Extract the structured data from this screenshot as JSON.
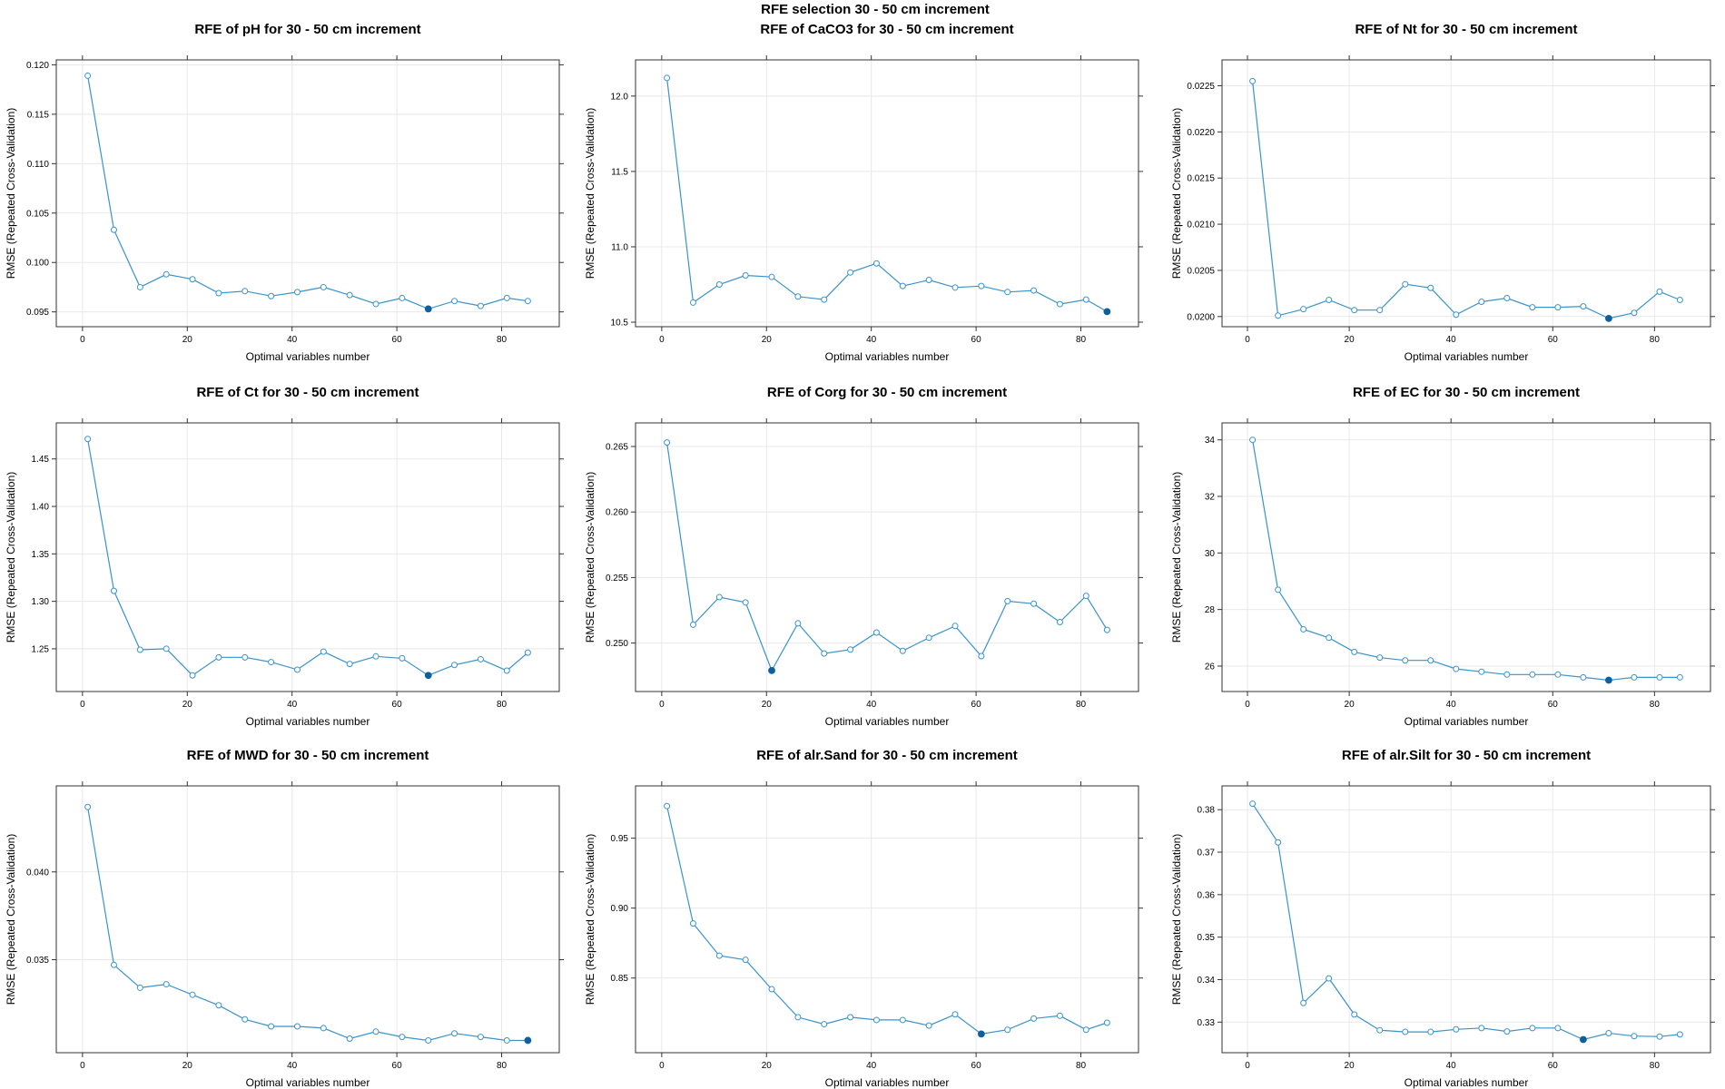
{
  "figure_title": "RFE selection 30 - 50 cm increment",
  "colors": {
    "line": "#3a93c9",
    "point_fill": "#ffffff",
    "best_point": "#0f5f9c",
    "grid": "#e8e8e8",
    "frame": "#333333"
  },
  "chart_data": [
    {
      "type": "line",
      "title": "RFE of pH for 30 - 50 cm increment",
      "xlabel": "Optimal variables number",
      "ylabel": "RMSE (Repeated Cross-Validation)",
      "xlim": [
        -5,
        91
      ],
      "ylim": [
        0.0935,
        0.1205
      ],
      "x_ticks": [
        0,
        20,
        40,
        60,
        80
      ],
      "y_ticks": [
        0.095,
        0.1,
        0.105,
        0.11,
        0.115,
        0.12
      ],
      "y_tick_labels": [
        "0.095",
        "0.100",
        "0.105",
        "0.110",
        "0.115",
        "0.120"
      ],
      "grid": true,
      "x": [
        1,
        6,
        11,
        16,
        21,
        26,
        31,
        36,
        41,
        46,
        51,
        56,
        61,
        66,
        71,
        76,
        81,
        85
      ],
      "values": [
        0.1189,
        0.1033,
        0.0975,
        0.0988,
        0.0983,
        0.0969,
        0.0971,
        0.0966,
        0.097,
        0.0975,
        0.0967,
        0.0958,
        0.0964,
        0.0953,
        0.0961,
        0.0956,
        0.0964,
        0.0961
      ],
      "best_index": 13
    },
    {
      "type": "line",
      "title": "RFE of CaCO3 for 30 - 50 cm increment",
      "xlabel": "Optimal variables number",
      "ylabel": "RMSE (Repeated Cross-Validation)",
      "xlim": [
        -5,
        91
      ],
      "ylim": [
        10.47,
        12.24
      ],
      "x_ticks": [
        0,
        20,
        40,
        60,
        80
      ],
      "y_ticks": [
        10.5,
        11.0,
        11.5,
        12.0
      ],
      "y_tick_labels": [
        "10.5",
        "11.0",
        "11.5",
        "12.0"
      ],
      "grid": true,
      "x": [
        1,
        6,
        11,
        16,
        21,
        26,
        31,
        36,
        41,
        46,
        51,
        56,
        61,
        66,
        71,
        76,
        81,
        85
      ],
      "values": [
        12.12,
        10.63,
        10.75,
        10.81,
        10.8,
        10.67,
        10.65,
        10.83,
        10.89,
        10.74,
        10.78,
        10.73,
        10.74,
        10.7,
        10.71,
        10.62,
        10.65,
        10.57
      ],
      "best_index": 17
    },
    {
      "type": "line",
      "title": "RFE of Nt for 30 - 50 cm increment",
      "xlabel": "Optimal variables number",
      "ylabel": "RMSE (Repeated Cross-Validation)",
      "xlim": [
        -5,
        91
      ],
      "ylim": [
        0.01989,
        0.02278
      ],
      "x_ticks": [
        0,
        20,
        40,
        60,
        80
      ],
      "y_ticks": [
        0.02,
        0.0205,
        0.021,
        0.0215,
        0.022,
        0.0225
      ],
      "y_tick_labels": [
        "0.0200",
        "0.0205",
        "0.0210",
        "0.0215",
        "0.0220",
        "0.0225"
      ],
      "grid": true,
      "x": [
        1,
        6,
        11,
        16,
        21,
        26,
        31,
        36,
        41,
        46,
        51,
        56,
        61,
        66,
        71,
        76,
        81,
        85
      ],
      "values": [
        0.02255,
        0.02001,
        0.02008,
        0.02018,
        0.02007,
        0.02007,
        0.02035,
        0.02031,
        0.02002,
        0.02016,
        0.0202,
        0.0201,
        0.0201,
        0.02011,
        0.01998,
        0.02004,
        0.02027,
        0.02018
      ],
      "best_index": 14
    },
    {
      "type": "line",
      "title": "RFE of Ct for 30 - 50 cm increment",
      "xlabel": "Optimal variables number",
      "ylabel": "RMSE (Repeated Cross-Validation)",
      "xlim": [
        -5,
        91
      ],
      "ylim": [
        1.205,
        1.488
      ],
      "x_ticks": [
        0,
        20,
        40,
        60,
        80
      ],
      "y_ticks": [
        1.25,
        1.3,
        1.35,
        1.4,
        1.45
      ],
      "y_tick_labels": [
        "1.25",
        "1.30",
        "1.35",
        "1.40",
        "1.45"
      ],
      "grid": true,
      "x": [
        1,
        6,
        11,
        16,
        21,
        26,
        31,
        36,
        41,
        46,
        51,
        56,
        61,
        66,
        71,
        76,
        81,
        85
      ],
      "values": [
        1.471,
        1.311,
        1.249,
        1.25,
        1.222,
        1.241,
        1.241,
        1.236,
        1.228,
        1.247,
        1.234,
        1.242,
        1.24,
        1.222,
        1.233,
        1.239,
        1.227,
        1.246
      ],
      "best_index": 13
    },
    {
      "type": "line",
      "title": "RFE of Corg for 30 - 50 cm increment",
      "xlabel": "Optimal variables number",
      "ylabel": "RMSE (Repeated Cross-Validation)",
      "xlim": [
        -5,
        91
      ],
      "ylim": [
        0.2463,
        0.2668
      ],
      "x_ticks": [
        0,
        20,
        40,
        60,
        80
      ],
      "y_ticks": [
        0.25,
        0.255,
        0.26,
        0.265
      ],
      "y_tick_labels": [
        "0.250",
        "0.255",
        "0.260",
        "0.265"
      ],
      "grid": true,
      "x": [
        1,
        6,
        11,
        16,
        21,
        26,
        31,
        36,
        41,
        46,
        51,
        56,
        61,
        66,
        71,
        76,
        81,
        85
      ],
      "values": [
        0.2653,
        0.2514,
        0.2535,
        0.2531,
        0.2479,
        0.2515,
        0.2492,
        0.2495,
        0.2508,
        0.2494,
        0.2504,
        0.2513,
        0.249,
        0.2532,
        0.253,
        0.2516,
        0.2536,
        0.251
      ],
      "best_index": 4
    },
    {
      "type": "line",
      "title": "RFE of EC for 30 - 50 cm increment",
      "xlabel": "Optimal variables number",
      "ylabel": "RMSE (Repeated Cross-Validation)",
      "xlim": [
        -5,
        91
      ],
      "ylim": [
        25.1,
        34.6
      ],
      "x_ticks": [
        0,
        20,
        40,
        60,
        80
      ],
      "y_ticks": [
        26,
        28,
        30,
        32,
        34
      ],
      "y_tick_labels": [
        "26",
        "28",
        "30",
        "32",
        "34"
      ],
      "grid": true,
      "x": [
        1,
        6,
        11,
        16,
        21,
        26,
        31,
        36,
        41,
        46,
        51,
        56,
        61,
        66,
        71,
        76,
        81,
        85
      ],
      "values": [
        34.0,
        28.7,
        27.3,
        27.0,
        26.5,
        26.3,
        26.2,
        26.2,
        25.9,
        25.8,
        25.7,
        25.7,
        25.7,
        25.6,
        25.5,
        25.6,
        25.6,
        25.6
      ],
      "best_index": 14
    },
    {
      "type": "line",
      "title": "RFE of MWD for 30 - 50 cm increment",
      "xlabel": "Optimal variables number",
      "ylabel": "RMSE (Repeated Cross-Validation)",
      "xlim": [
        -5,
        91
      ],
      "ylim": [
        0.0297,
        0.0449
      ],
      "x_ticks": [
        0,
        20,
        40,
        60,
        80
      ],
      "y_ticks": [
        0.035,
        0.04
      ],
      "y_tick_labels": [
        "0.035",
        "0.040"
      ],
      "grid": true,
      "x": [
        1,
        6,
        11,
        16,
        21,
        26,
        31,
        36,
        41,
        46,
        51,
        56,
        61,
        66,
        71,
        76,
        81,
        85
      ],
      "values": [
        0.0437,
        0.0347,
        0.0334,
        0.0336,
        0.033,
        0.0324,
        0.0316,
        0.0312,
        0.0312,
        0.0311,
        0.0305,
        0.0309,
        0.0306,
        0.0304,
        0.0308,
        0.0306,
        0.0304,
        0.0304
      ],
      "best_index": 17
    },
    {
      "type": "line",
      "title": "RFE of alr.Sand for 30 - 50 cm increment",
      "xlabel": "Optimal variables number",
      "ylabel": "RMSE (Repeated Cross-Validation)",
      "xlim": [
        -5,
        91
      ],
      "ylim": [
        0.7966,
        0.9874
      ],
      "x_ticks": [
        0,
        20,
        40,
        60,
        80
      ],
      "y_ticks": [
        0.85,
        0.9,
        0.95
      ],
      "y_tick_labels": [
        "0.85",
        "0.90",
        "0.95"
      ],
      "grid": true,
      "x": [
        1,
        6,
        11,
        16,
        21,
        26,
        31,
        36,
        41,
        46,
        51,
        56,
        61,
        66,
        71,
        76,
        81,
        85
      ],
      "values": [
        0.973,
        0.889,
        0.866,
        0.863,
        0.842,
        0.822,
        0.817,
        0.822,
        0.82,
        0.82,
        0.816,
        0.824,
        0.81,
        0.813,
        0.821,
        0.823,
        0.813,
        0.818
      ],
      "best_index": 12
    },
    {
      "type": "line",
      "title": "RFE of alr.Silt for 30 - 50 cm increment",
      "xlabel": "Optimal variables number",
      "ylabel": "RMSE (Repeated Cross-Validation)",
      "xlim": [
        -5,
        91
      ],
      "ylim": [
        0.3228,
        0.3856
      ],
      "x_ticks": [
        0,
        20,
        40,
        60,
        80
      ],
      "y_ticks": [
        0.33,
        0.34,
        0.35,
        0.36,
        0.37,
        0.38
      ],
      "y_tick_labels": [
        "0.33",
        "0.34",
        "0.35",
        "0.36",
        "0.37",
        "0.38"
      ],
      "grid": true,
      "x": [
        1,
        6,
        11,
        16,
        21,
        26,
        31,
        36,
        41,
        46,
        51,
        56,
        61,
        66,
        71,
        76,
        81,
        85
      ],
      "values": [
        0.3814,
        0.3723,
        0.3345,
        0.3403,
        0.3318,
        0.3281,
        0.3277,
        0.3277,
        0.3283,
        0.3286,
        0.3278,
        0.3286,
        0.3286,
        0.3259,
        0.3274,
        0.3267,
        0.3266,
        0.3271
      ],
      "best_index": 13
    }
  ]
}
